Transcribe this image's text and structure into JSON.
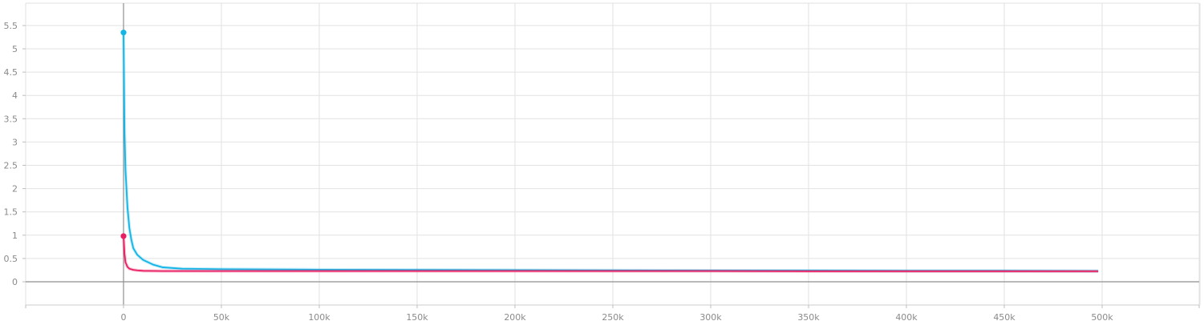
{
  "chart_data": {
    "type": "line",
    "title": "",
    "xlabel": "",
    "ylabel": "",
    "grid": true,
    "xlim": [
      -50000,
      550000
    ],
    "ylim": [
      -0.5,
      5.85
    ],
    "x_ticks": [
      0,
      50000,
      100000,
      150000,
      200000,
      250000,
      300000,
      350000,
      400000,
      450000,
      500000
    ],
    "x_tick_labels": [
      "0",
      "50k",
      "100k",
      "150k",
      "200k",
      "250k",
      "300k",
      "350k",
      "400k",
      "450k",
      "500k"
    ],
    "y_ticks": [
      0,
      0.5,
      1,
      1.5,
      2,
      2.5,
      3,
      3.5,
      4,
      4.5,
      5,
      5.5
    ],
    "y_tick_labels": [
      "0",
      "0.5",
      "1",
      "1.5",
      "2",
      "2.5",
      "3",
      "3.5",
      "4",
      "4.5",
      "5",
      "5.5"
    ],
    "series": [
      {
        "color": "#12b5e6",
        "x": [
          0,
          500,
          1000,
          2000,
          3000,
          4000,
          5000,
          7000,
          10000,
          15000,
          20000,
          30000,
          50000,
          100000,
          150000,
          200000,
          250000,
          300000,
          350000,
          400000,
          450000,
          498000
        ],
        "y": [
          5.35,
          3.2,
          2.4,
          1.6,
          1.15,
          0.9,
          0.72,
          0.58,
          0.47,
          0.37,
          0.31,
          0.28,
          0.27,
          0.26,
          0.255,
          0.25,
          0.245,
          0.24,
          0.24,
          0.235,
          0.235,
          0.23
        ]
      },
      {
        "color": "#e91e63",
        "x": [
          0,
          500,
          1000,
          2000,
          3000,
          5000,
          7000,
          10000,
          20000,
          50000,
          100000,
          150000,
          200000,
          250000,
          300000,
          350000,
          400000,
          450000,
          498000
        ],
        "y": [
          0.98,
          0.6,
          0.42,
          0.32,
          0.28,
          0.255,
          0.245,
          0.235,
          0.23,
          0.23,
          0.23,
          0.23,
          0.23,
          0.23,
          0.23,
          0.225,
          0.225,
          0.225,
          0.225
        ]
      }
    ]
  }
}
